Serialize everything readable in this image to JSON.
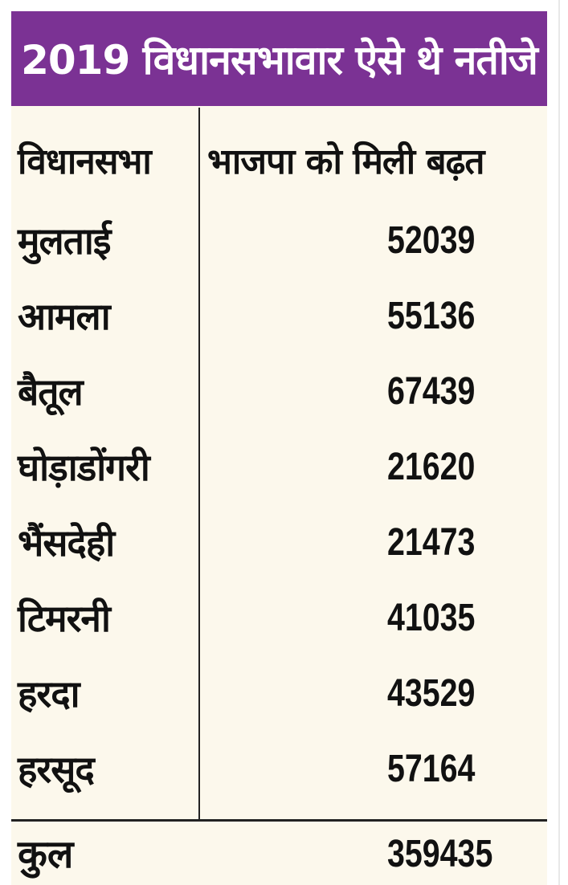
{
  "title": "2019 विधानसभावार ऐसे थे नतीजे",
  "header": {
    "constituency": "विधानसभा",
    "lead": "भाजपा को मिली बढ़त"
  },
  "rows": [
    {
      "name": "मुलताई",
      "value": "52039"
    },
    {
      "name": "आमला",
      "value": "55136"
    },
    {
      "name": "बैतूल",
      "value": "67439"
    },
    {
      "name": "घोड़ाडोंगरी",
      "value": "21620"
    },
    {
      "name": "भैंसदेही",
      "value": "21473"
    },
    {
      "name": "टिमरनी",
      "value": "41035"
    },
    {
      "name": "हरदा",
      "value": "43529"
    },
    {
      "name": "हरसूद",
      "value": "57164"
    }
  ],
  "total": {
    "name": "कुल",
    "value": "359435"
  },
  "colors": {
    "title_bg": "#7b3294",
    "title_text": "#ffffff",
    "table_bg": "#fcf8ec",
    "text": "#111111"
  }
}
